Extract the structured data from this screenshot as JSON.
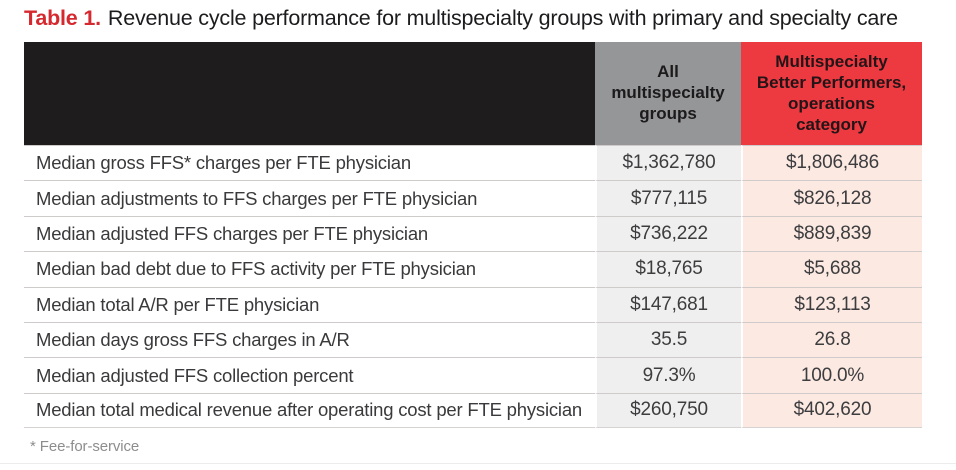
{
  "page": {
    "title_prefix": "Table 1.",
    "title_text": "Revenue cycle performance for multispecialty groups with primary and specialty care",
    "footnote": "* Fee-for-service"
  },
  "chart_data": {
    "type": "table",
    "title": "Table 1. Revenue cycle performance for multispecialty groups with primary and specialty care",
    "columns": [
      "",
      "All multispecialty groups",
      "Multispecialty Better Performers, operations category"
    ],
    "rows": [
      {
        "metric": "Median gross FFS* charges per FTE physician",
        "all_groups": "$1,362,780",
        "better_performers": "$1,806,486"
      },
      {
        "metric": "Median adjustments to FFS charges per FTE physician",
        "all_groups": "$777,115",
        "better_performers": "$826,128"
      },
      {
        "metric": "Median adjusted FFS charges per FTE physician",
        "all_groups": "$736,222",
        "better_performers": "$889,839"
      },
      {
        "metric": "Median bad debt due to FFS activity per FTE physician",
        "all_groups": "$18,765",
        "better_performers": "$5,688"
      },
      {
        "metric": "Median total A/R per FTE physician",
        "all_groups": "$147,681",
        "better_performers": "$123,113"
      },
      {
        "metric": "Median days gross FFS charges in A/R",
        "all_groups": "35.5",
        "better_performers": "26.8"
      },
      {
        "metric": "Median adjusted FFS collection percent",
        "all_groups": "97.3%",
        "better_performers": "100.0%"
      },
      {
        "metric": "Median total medical revenue after operating cost per FTE physician",
        "all_groups": "$260,750",
        "better_performers": "$402,620"
      }
    ],
    "footnote": "* Fee-for-service",
    "layout": {
      "legend": "none",
      "grid": "row-separators"
    }
  },
  "colors": {
    "title_accent": "#d5292f",
    "header_dark": "#1f1c1d",
    "header_gray": "#959698",
    "header_red": "#ed3a41",
    "cell_gray_bg": "#f0efef",
    "cell_pink_bg": "#fbe9e2",
    "body_text": "#3a3a3c",
    "footnote_text": "#8d8d8e"
  }
}
